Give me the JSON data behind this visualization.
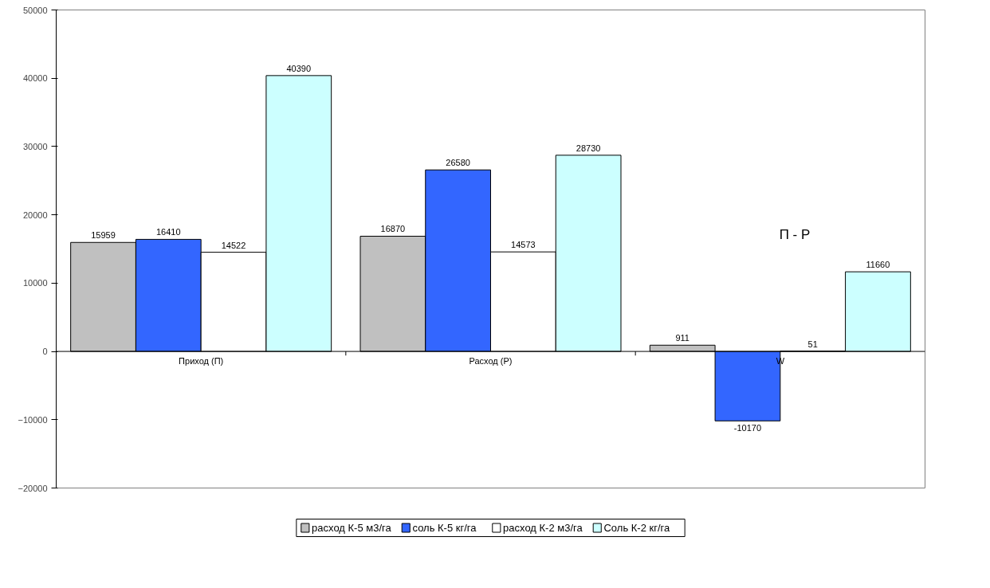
{
  "chart_data": {
    "type": "bar",
    "categories": [
      "Приход (П)",
      "Расход (Р)",
      "W"
    ],
    "series": [
      {
        "name": "расход К-5 м3/га",
        "color": "#c0c0c0",
        "values": [
          15959,
          16870,
          911
        ]
      },
      {
        "name": "соль К-5 кг/га",
        "color": "#3366ff",
        "values": [
          16410,
          26580,
          -10170
        ]
      },
      {
        "name": "расход К-2 м3/га",
        "color": "#ffffff",
        "values": [
          14522,
          14573,
          51
        ]
      },
      {
        "name": "Соль К-2 кг/га",
        "color": "#ccffff",
        "values": [
          40390,
          28730,
          11660
        ]
      }
    ],
    "ylim": [
      -20000,
      50000
    ],
    "yticks": [
      -20000,
      -10000,
      0,
      10000,
      20000,
      30000,
      40000,
      50000
    ],
    "grid": false,
    "legend": "bottom",
    "data_labels": true,
    "annotations": [
      "П - Р"
    ]
  }
}
